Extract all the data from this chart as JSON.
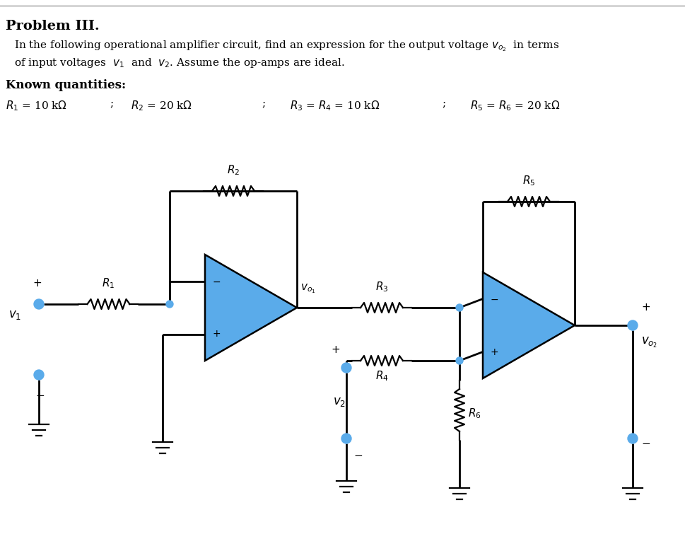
{
  "title": "Problem III.",
  "desc1": "In the following operational amplifier circuit, find an expression for the output voltage $v_{o_2}$  in terms",
  "desc2": "of input voltages  $v_1$  and  $v_2$. Assume the op-amps are ideal.",
  "known_label": "Known quantities:",
  "op_amp_color": "#5aabea",
  "wire_color": "#000000",
  "dot_color": "#5aabea",
  "background": "#ffffff"
}
